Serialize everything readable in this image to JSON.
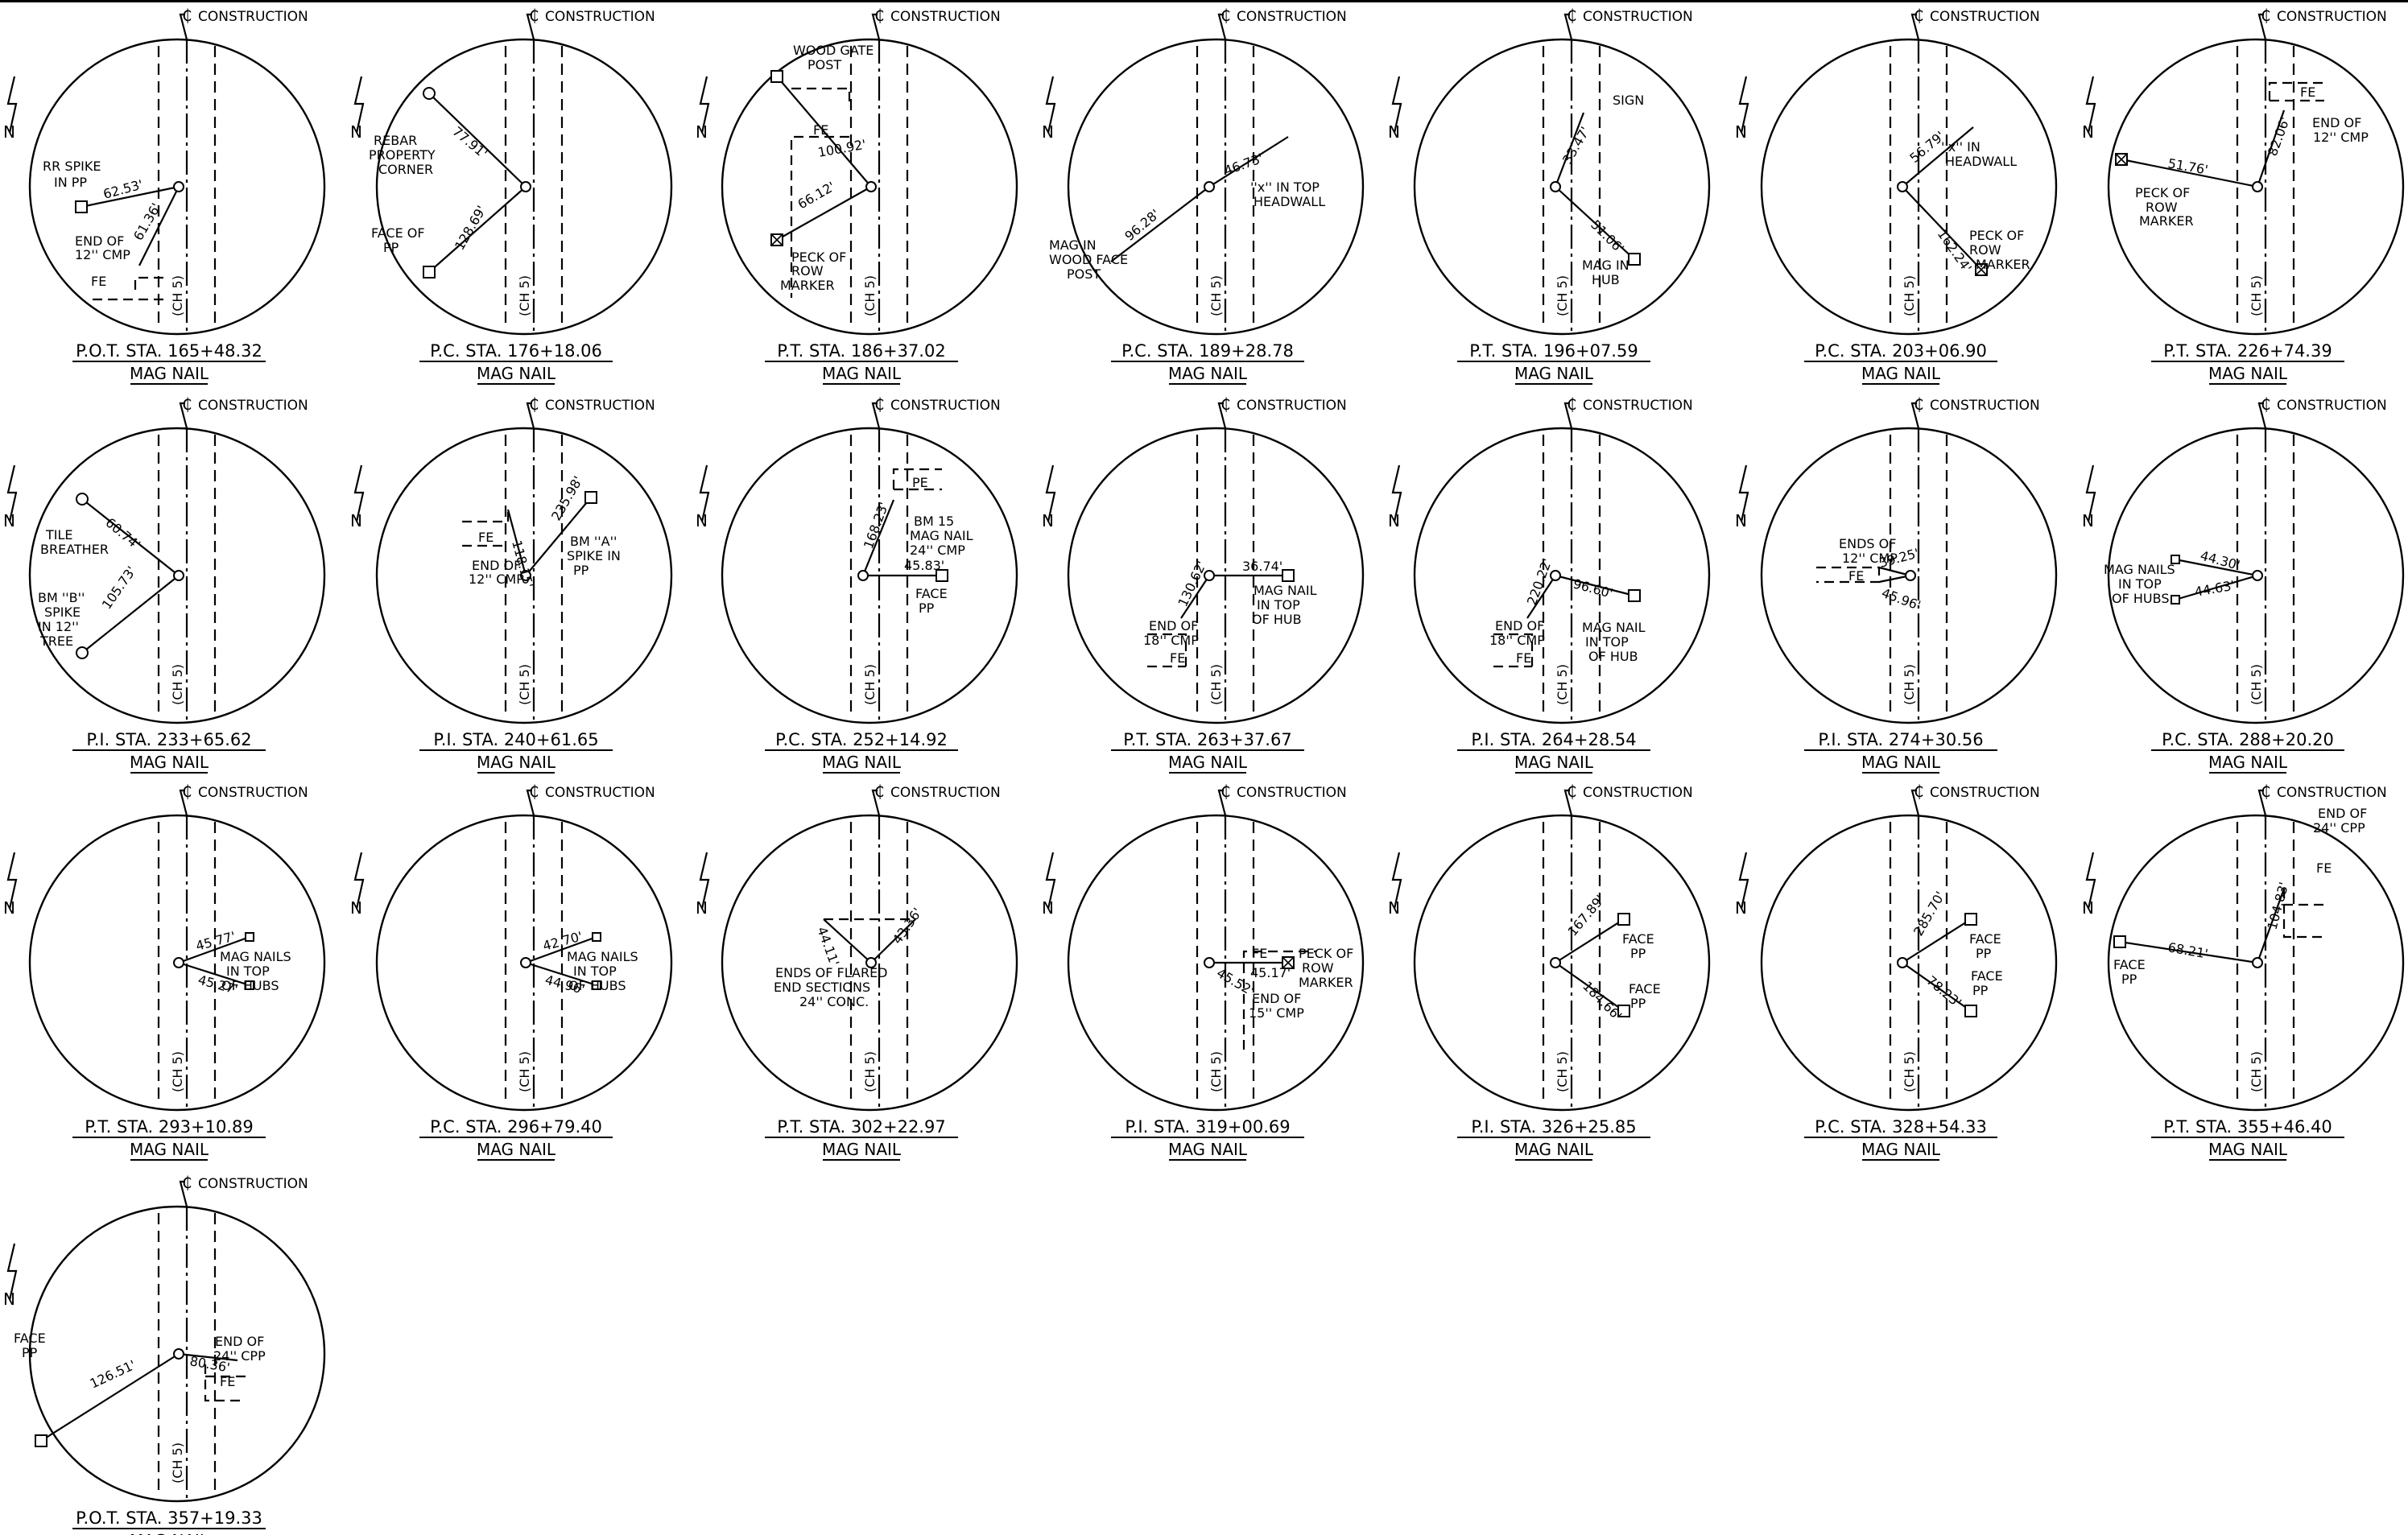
{
  "common": {
    "north_label": "N",
    "construction_label": "CONSTRUCTION",
    "cl_symbol": "₵",
    "ch_label": "(CH 5)",
    "sub_label": "MAG NAIL"
  },
  "panels": [
    {
      "title": "P.O.T. STA. 165+48.32",
      "labels": [
        "RR SPIKE",
        "IN PP",
        "62.53'",
        "61.36'",
        "END OF",
        "12'' CMP",
        "FE"
      ]
    },
    {
      "title": "P.C. STA. 176+18.06",
      "labels": [
        "REBAR",
        "PROPERTY",
        "CORNER",
        "77.91'",
        "FACE OF",
        "PP",
        "128.69'"
      ]
    },
    {
      "title": "P.T. STA. 186+37.02",
      "labels": [
        "WOOD GATE",
        "POST",
        "FE",
        "100.92'",
        "66.12'",
        "PECK OF",
        "ROW",
        "MARKER"
      ]
    },
    {
      "title": "P.C. STA. 189+28.78",
      "labels": [
        "46.73'",
        "''x'' IN TOP",
        "HEADWALL",
        "96.28'",
        "MAG IN",
        "WOOD FACE",
        "POST"
      ]
    },
    {
      "title": "P.T. STA. 196+07.59",
      "labels": [
        "SIGN",
        "33.47'",
        "51.06'",
        "MAG IN",
        "HUB"
      ]
    },
    {
      "title": "P.C. STA. 203+06.90",
      "labels": [
        "56.79'",
        "''x'' IN",
        "HEADWALL",
        "162.24'",
        "PECK OF",
        "ROW",
        "MARKER"
      ]
    },
    {
      "title": "P.T. STA. 226+74.39",
      "labels": [
        "FE",
        "END OF",
        "12'' CMP",
        "82.06'",
        "51.76'",
        "PECK OF",
        "ROW",
        "MARKER"
      ]
    },
    {
      "title": "P.I. STA. 233+65.62",
      "labels": [
        "60.74'",
        "TILE",
        "BREATHER",
        "105.73'",
        "BM ''B''",
        "SPIKE",
        "IN 12''",
        "TREE"
      ]
    },
    {
      "title": "P.I. STA. 240+61.65",
      "labels": [
        "FE",
        "END OF",
        "12'' CMP",
        "118.15'",
        "235.98'",
        "BM ''A''",
        "SPIKE IN",
        "PP"
      ]
    },
    {
      "title": "P.C. STA. 252+14.92",
      "labels": [
        "PE",
        "168.23'",
        "BM 15",
        "MAG NAIL",
        "24'' CMP",
        "45.83'",
        "FACE",
        "PP"
      ]
    },
    {
      "title": "P.T. STA. 263+37.67",
      "labels": [
        "36.74'",
        "MAG NAIL",
        "IN TOP",
        "OF HUB",
        "130.62'",
        "END OF",
        "18'' CMP",
        "FE"
      ]
    },
    {
      "title": "P.I. STA. 264+28.54",
      "labels": [
        "220.22'",
        "96.60'",
        "END OF",
        "18'' CMP",
        "FE",
        "MAG NAIL",
        "IN TOP",
        "OF HUB"
      ]
    },
    {
      "title": "P.I. STA. 274+30.56",
      "labels": [
        "ENDS OF",
        "12'' CMP",
        "39.25'",
        "45.96'",
        "FE"
      ]
    },
    {
      "title": "P.C. STA. 288+20.20",
      "labels": [
        "44.30'",
        "MAG NAILS",
        "IN TOP",
        "OF HUBS",
        "44.63'"
      ]
    },
    {
      "title": "P.T. STA. 293+10.89",
      "labels": [
        "45.77'",
        "MAG NAILS",
        "IN TOP",
        "OF HUBS",
        "45.27'"
      ]
    },
    {
      "title": "P.C. STA. 296+79.40",
      "labels": [
        "42.70'",
        "MAG NAILS",
        "IN TOP",
        "OF HUBS",
        "44.96'"
      ]
    },
    {
      "title": "P.T. STA. 302+22.97",
      "labels": [
        "44.11'",
        "43.36'",
        "ENDS OF FLARED",
        "END SECTIONS",
        "24'' CONC."
      ]
    },
    {
      "title": "P.I. STA. 319+00.69",
      "labels": [
        "FE",
        "PECK OF",
        "ROW",
        "MARKER",
        "45.17'",
        "45.52'",
        "END OF",
        "15'' CMP"
      ]
    },
    {
      "title": "P.I. STA. 326+25.85",
      "labels": [
        "167.89'",
        "FACE",
        "PP",
        "184.66'",
        "FACE",
        "PP"
      ]
    },
    {
      "title": "P.C. STA. 328+54.33",
      "labels": [
        "285.70'",
        "FACE",
        "PP",
        "78.23'",
        "FACE",
        "PP"
      ]
    },
    {
      "title": "P.T. STA. 355+46.40",
      "labels": [
        "END OF",
        "24'' CPP",
        "FE",
        "104.83'",
        "68.21'",
        "FACE",
        "PP"
      ]
    },
    {
      "title": "P.O.T. STA. 357+19.33",
      "labels": [
        "FACE",
        "PP",
        "126.51'",
        "80.36'",
        "END OF",
        "24'' CPP",
        "FE"
      ]
    }
  ]
}
